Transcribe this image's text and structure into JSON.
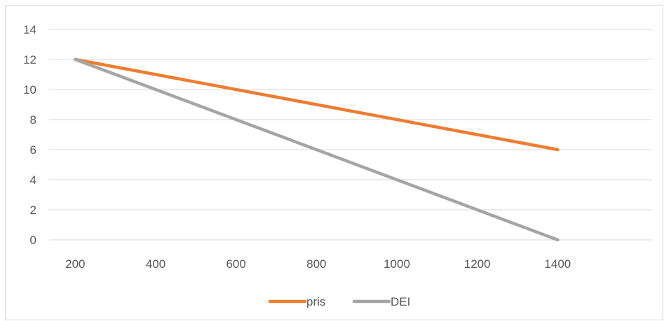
{
  "chart_data": {
    "type": "line",
    "title": "",
    "xlabel": "",
    "ylabel": "",
    "x": [
      200,
      400,
      600,
      800,
      1000,
      1200,
      1400
    ],
    "x_ticks": [
      "200",
      "400",
      "600",
      "800",
      "1000",
      "1200",
      "1400"
    ],
    "ylim": [
      0,
      14
    ],
    "y_ticks": [
      "0",
      "2",
      "4",
      "6",
      "8",
      "10",
      "12",
      "14"
    ],
    "grid": "horizontal",
    "legend_position": "bottom",
    "series": [
      {
        "name": "pris",
        "color": "#ed7d31",
        "points": [
          [
            200,
            12
          ],
          [
            1400,
            6
          ]
        ]
      },
      {
        "name": "DEI",
        "color": "#a5a5a5",
        "points": [
          [
            200,
            12
          ],
          [
            1400,
            0
          ]
        ]
      }
    ]
  }
}
